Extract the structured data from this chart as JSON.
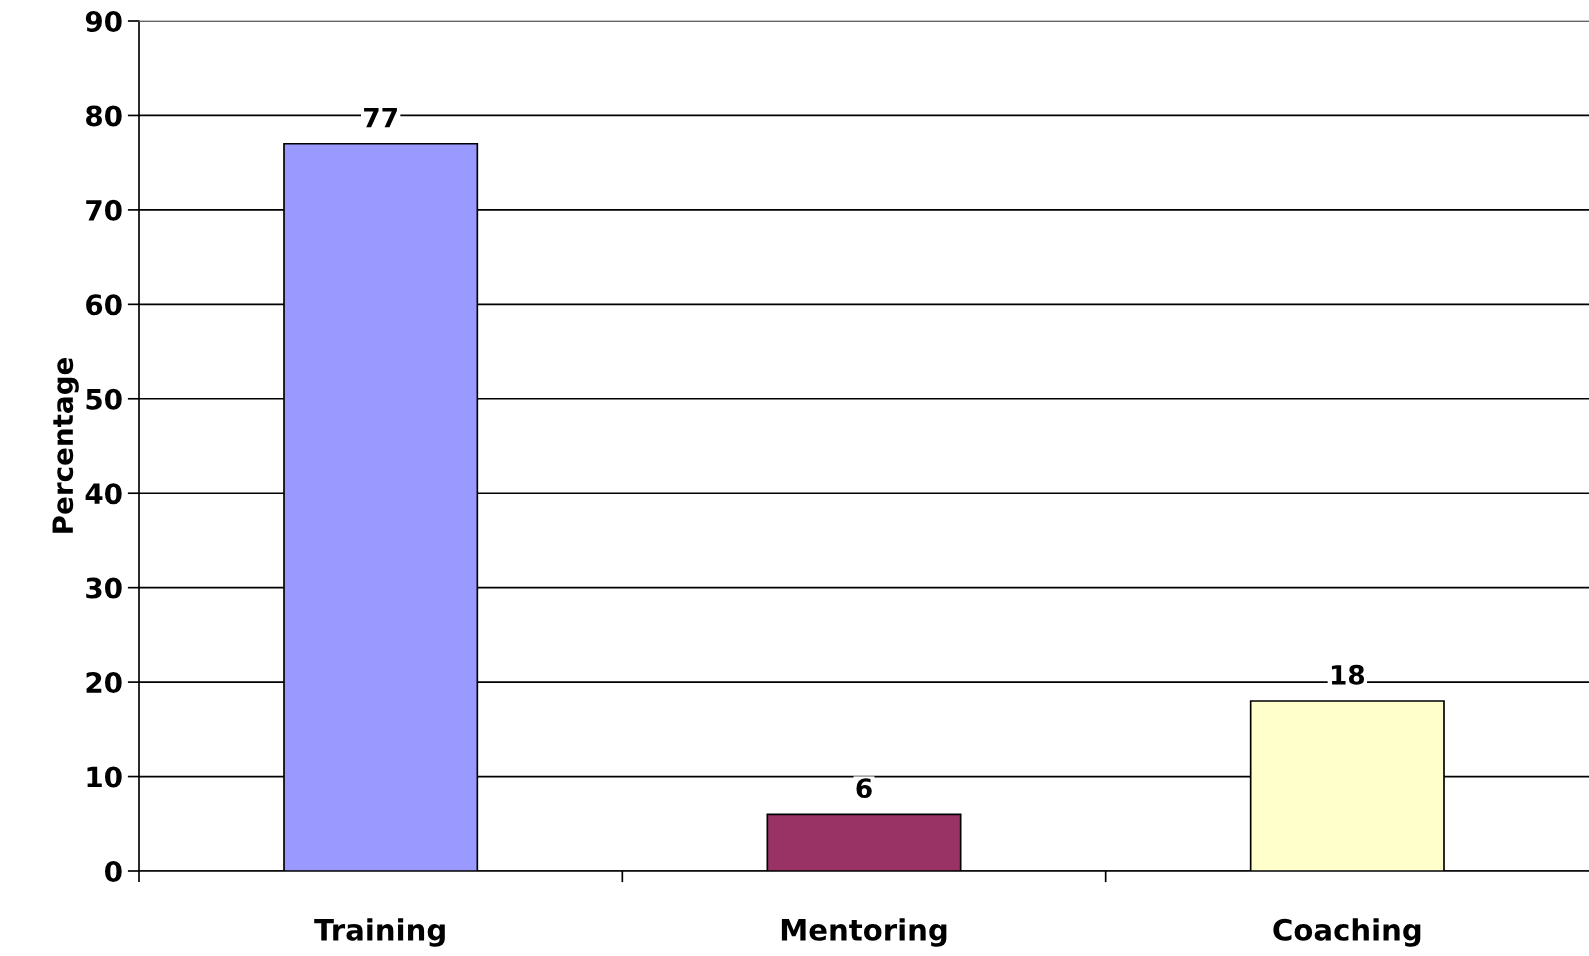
{
  "chart_data": {
    "type": "bar",
    "ylabel": "Percentage",
    "categories": [
      "Training",
      "Mentoring",
      "Coaching"
    ],
    "values": [
      77,
      6,
      18
    ],
    "colors": [
      "#9999ff",
      "#993366",
      "#ffffcc"
    ],
    "ylim": [
      0,
      90
    ],
    "yticks": [
      0,
      10,
      20,
      30,
      40,
      50,
      60,
      70,
      80,
      90
    ],
    "grid": "y",
    "data_labels": true,
    "legend": false
  }
}
